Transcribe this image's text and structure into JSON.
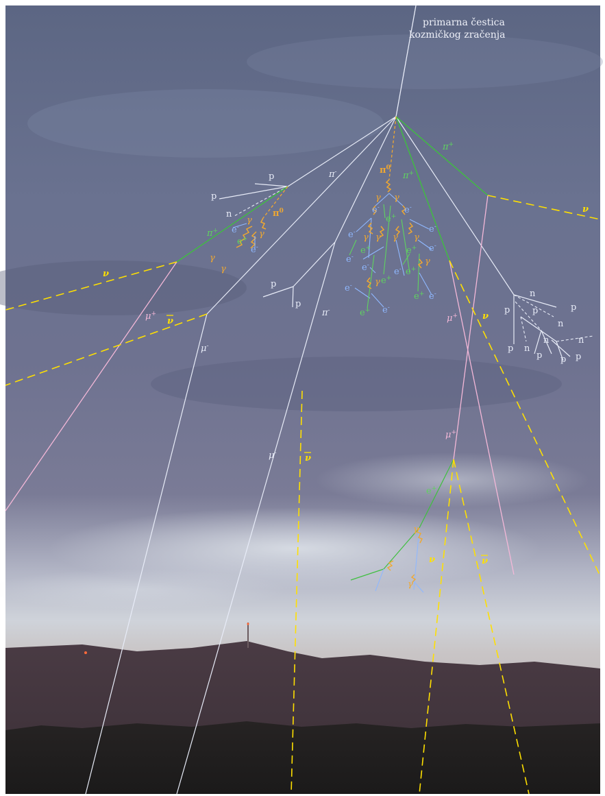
{
  "title": {
    "line1": "primarna čestica",
    "line2": "kozmičkog zračenja"
  },
  "colors": {
    "hadron": "#e8ecf8",
    "pion_charged": "#3fbf3f",
    "photon": "#f0a830",
    "electron": "#8fb8ff",
    "positron": "#5fd35f",
    "muon": "#f4b8d8",
    "neutrino": "#ffe000",
    "neutral_pion": "#f0a830"
  },
  "particles": {
    "pi_plus": "π",
    "pi_plus_sup": "+",
    "pi_minus": "π",
    "pi_minus_sup": "-",
    "pi_zero": "π",
    "pi_zero_sup": "0",
    "gamma": "γ",
    "e_minus": "e",
    "e_minus_sup": "-",
    "e_plus": "e",
    "e_plus_sup": "+",
    "mu_plus": "μ",
    "mu_plus_sup": "+",
    "mu_minus": "μ",
    "mu_minus_sup": "-",
    "nu": "ν",
    "nu_bar": "ν",
    "proton": "p",
    "neutron": "n"
  }
}
